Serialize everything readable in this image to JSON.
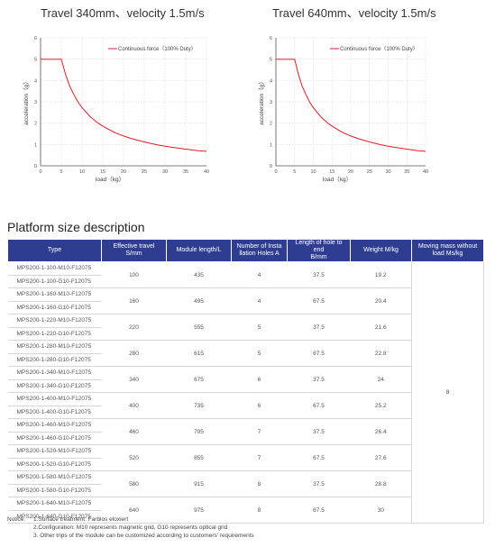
{
  "charts": [
    {
      "title": "Travel 340mm、velocity 1.5m/s",
      "legend": "Continuous force（100% Duty）",
      "ylabel": "acceleration（g）",
      "xlabel": "load（kg）",
      "xticks": [
        "0",
        "5",
        "10",
        "15",
        "20",
        "25",
        "30",
        "35",
        "40"
      ],
      "yticks": [
        "0",
        "1",
        "2",
        "3",
        "4",
        "5",
        "6"
      ]
    },
    {
      "title": "Travel 640mm、velocity 1.5m/s",
      "legend": "Continuous force（100% Duty）",
      "ylabel": "acceleration（g）",
      "xlabel": "load（kg）",
      "xticks": [
        "0",
        "5",
        "10",
        "15",
        "20",
        "25",
        "30",
        "35",
        "40"
      ],
      "yticks": [
        "0",
        "1",
        "2",
        "3",
        "4",
        "5",
        "6"
      ]
    }
  ],
  "chart_data": [
    {
      "type": "line",
      "title": "Travel 340mm、velocity 1.5m/s",
      "xlabel": "load（kg）",
      "ylabel": "acceleration（g）",
      "xlim": [
        0,
        40
      ],
      "ylim": [
        0,
        6
      ],
      "grid": true,
      "legend_position": "top-right",
      "series": [
        {
          "name": "Continuous force（100% Duty）",
          "color": "#e21b23",
          "x": [
            0,
            5,
            6,
            7,
            8,
            9,
            10,
            12,
            14,
            16,
            18,
            20,
            22,
            25,
            28,
            30,
            32,
            35,
            38,
            40
          ],
          "y": [
            5,
            5,
            4.3,
            3.75,
            3.35,
            3.0,
            2.72,
            2.3,
            1.98,
            1.75,
            1.55,
            1.4,
            1.27,
            1.12,
            0.99,
            0.92,
            0.86,
            0.78,
            0.71,
            0.68
          ]
        }
      ]
    },
    {
      "type": "line",
      "title": "Travel 640mm、velocity 1.5m/s",
      "xlabel": "load（kg）",
      "ylabel": "acceleration（g）",
      "xlim": [
        0,
        40
      ],
      "ylim": [
        0,
        6
      ],
      "grid": true,
      "legend_position": "top-right",
      "series": [
        {
          "name": "Continuous force（100% Duty）",
          "color": "#e21b23",
          "x": [
            0,
            5,
            6,
            7,
            8,
            9,
            10,
            12,
            14,
            16,
            18,
            20,
            22,
            25,
            28,
            30,
            32,
            35,
            38,
            40
          ],
          "y": [
            5,
            5,
            4.3,
            3.75,
            3.35,
            3.0,
            2.72,
            2.3,
            1.98,
            1.75,
            1.55,
            1.4,
            1.27,
            1.12,
            0.99,
            0.92,
            0.86,
            0.78,
            0.71,
            0.68
          ]
        }
      ]
    }
  ],
  "section_title": "Platform size description",
  "table": {
    "headers": [
      "Type",
      "Effective travel\nS/mm",
      "Module length/L",
      "Number of Insta\nllation Holes A",
      "Length of hole to end\nB/mm",
      "Weight M/kg",
      "Moving mass without\nload Ms/kg"
    ],
    "moving_mass": "8",
    "groups": [
      {
        "types": [
          "MPS200-1-100-M10-F12075",
          "MPS200-1-100-G10-F12075"
        ],
        "travel": "100",
        "length": "435",
        "holes": "4",
        "hole_end": "37.5",
        "weight": "19.2"
      },
      {
        "types": [
          "MPS200-1-160-M10-F12075",
          "MPS200-1-160-G10-F12075"
        ],
        "travel": "160",
        "length": "495",
        "holes": "4",
        "hole_end": "67.5",
        "weight": "20.4"
      },
      {
        "types": [
          "MPS200-1-220-M10-F12075",
          "MPS200-1-220-G10-F12075"
        ],
        "travel": "220",
        "length": "555",
        "holes": "5",
        "hole_end": "37.5",
        "weight": "21.6"
      },
      {
        "types": [
          "MPS200-1-280-M10-F12075",
          "MPS200-1-280-G10-F12075"
        ],
        "travel": "280",
        "length": "615",
        "holes": "5",
        "hole_end": "67.5",
        "weight": "22.8"
      },
      {
        "types": [
          "MPS200-1-340-M10-F12075",
          "MPS200-1-340-G10-F12075"
        ],
        "travel": "340",
        "length": "675",
        "holes": "6",
        "hole_end": "37.5",
        "weight": "24"
      },
      {
        "types": [
          "MPS200-1-400-M10-F12075",
          "MPS200-1-400-G10-F12075"
        ],
        "travel": "400",
        "length": "735",
        "holes": "6",
        "hole_end": "67.5",
        "weight": "25.2"
      },
      {
        "types": [
          "MPS200-1-460-M10-F12075",
          "MPS200-1-460-G10-F12075"
        ],
        "travel": "460",
        "length": "795",
        "holes": "7",
        "hole_end": "37.5",
        "weight": "26.4"
      },
      {
        "types": [
          "MPS200-1-520-M10-F12075",
          "MPS200-1-520-G10-F12075"
        ],
        "travel": "520",
        "length": "855",
        "holes": "7",
        "hole_end": "67.5",
        "weight": "27.6"
      },
      {
        "types": [
          "MPS200-1-580-M10-F12075",
          "MPS200-1-580-G10-F12075"
        ],
        "travel": "580",
        "length": "915",
        "holes": "8",
        "hole_end": "37.5",
        "weight": "28.8"
      },
      {
        "types": [
          "MPS200-1-640-M10-F12075",
          "MPS200-1-640-G10-F12075"
        ],
        "travel": "640",
        "length": "975",
        "holes": "8",
        "hole_end": "67.5",
        "weight": "30"
      }
    ]
  },
  "notice": {
    "label": "Notice:",
    "lines": [
      "1.Surface treatment: Farblos eloxiert",
      "2.Configuration: M10 represents magnetic grid, G10 represents optical grid",
      "3. Other trips of the module can be customized according to customers' requirements"
    ]
  },
  "colors": {
    "header_bg": "#2e3d8f",
    "curve": "#e21b23",
    "grid": "#cfcfcf"
  }
}
